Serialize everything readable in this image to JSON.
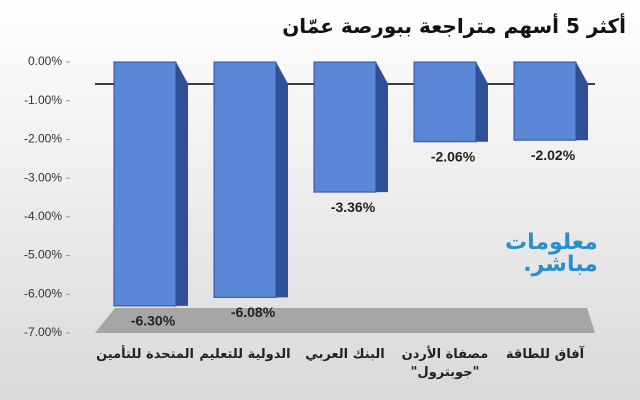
{
  "chart_data": {
    "type": "bar3d",
    "title": "أكثر 5 أسهم متراجعة ببورصة عمّان",
    "categories": [
      "المتحدة للتأمين",
      "الدولية للتعليم",
      "البنك العربي",
      "مصفاة الأردن \"جوبترول\"",
      "آفاق للطاقة"
    ],
    "values": [
      -6.3,
      -6.08,
      -3.36,
      -2.06,
      -2.02
    ],
    "value_labels": [
      "-6.30%",
      "-6.08%",
      "-3.36%",
      "-2.06%",
      "-2.02%"
    ],
    "color": "#5b87d9",
    "ylim": [
      -7,
      0
    ],
    "yticks": [
      {
        "value": 0,
        "label": "0.00%"
      },
      {
        "value": -1,
        "label": "-1.00%"
      },
      {
        "value": -2,
        "label": "-2.00%"
      },
      {
        "value": -3,
        "label": "-3.00%"
      },
      {
        "value": -4,
        "label": "-4.00%"
      },
      {
        "value": -5,
        "label": "-5.00%"
      },
      {
        "value": -6,
        "label": "-6.00%"
      },
      {
        "value": -7,
        "label": "-7.00%"
      }
    ],
    "watermark": [
      "معلومات",
      "مباشر."
    ]
  }
}
